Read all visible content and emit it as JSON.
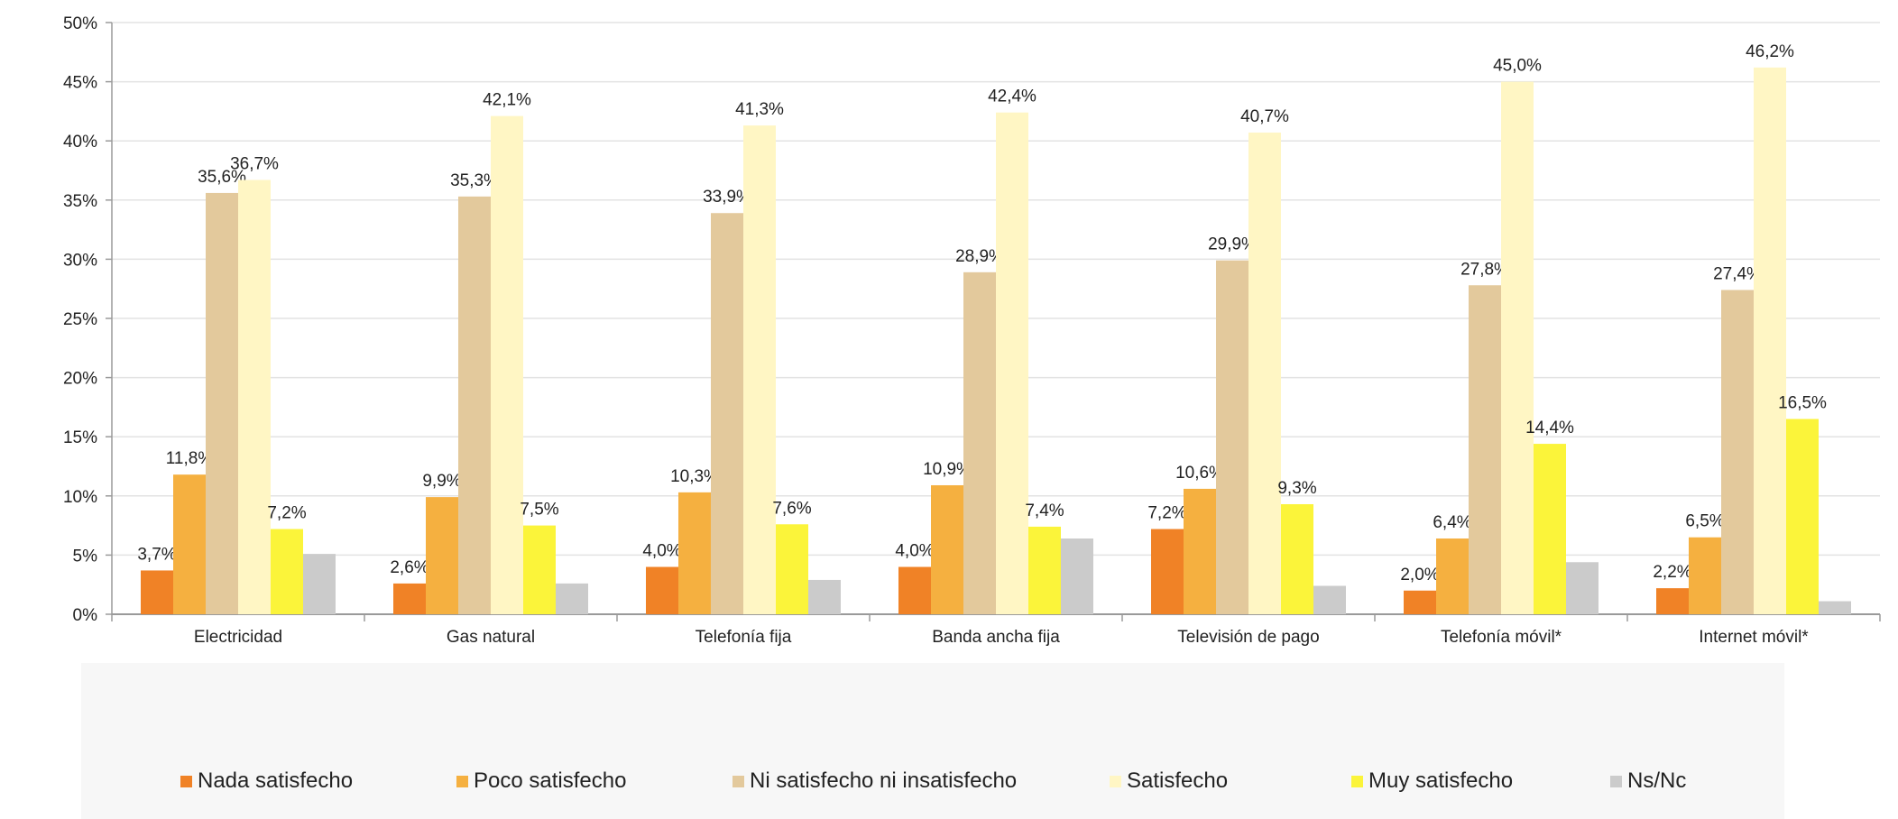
{
  "chart_data": {
    "type": "bar",
    "categories": [
      "Electricidad",
      "Gas natural",
      "Telefonía fija",
      "Banda ancha fija",
      "Televisión de pago",
      "Telefonía móvil*",
      "Internet móvil*"
    ],
    "series": [
      {
        "name": "Nada satisfecho",
        "color": "#f08226",
        "values": [
          3.7,
          2.6,
          4.0,
          4.0,
          7.2,
          2.0,
          2.2
        ],
        "labels": [
          "3,7%",
          "2,6%",
          "4,0%",
          "4,0%",
          "7,2%",
          "2,0%",
          "2,2%"
        ]
      },
      {
        "name": "Poco satisfecho",
        "color": "#f5b040",
        "values": [
          11.8,
          9.9,
          10.3,
          10.9,
          10.6,
          6.4,
          6.5
        ],
        "labels": [
          "11,8%",
          "9,9%",
          "10,3%",
          "10,9%",
          "10,6%",
          "6,4%",
          "6,5%"
        ]
      },
      {
        "name": "Ni satisfecho ni insatisfecho",
        "color": "#e3c99c",
        "values": [
          35.6,
          35.3,
          33.9,
          28.9,
          29.9,
          27.8,
          27.4
        ],
        "labels": [
          "35,6%",
          "35,3%",
          "33,9%",
          "28,9%",
          "29,9%",
          "27,8%",
          "27,4%"
        ]
      },
      {
        "name": "Satisfecho",
        "color": "#fff6c4",
        "values": [
          36.7,
          42.1,
          41.3,
          42.4,
          40.7,
          45.0,
          46.2
        ],
        "labels": [
          "36,7%",
          "42,1%",
          "41,3%",
          "42,4%",
          "40,7%",
          "45,0%",
          "46,2%"
        ]
      },
      {
        "name": "Muy satisfecho",
        "color": "#fbf43a",
        "values": [
          7.2,
          7.5,
          7.6,
          7.4,
          9.3,
          14.4,
          16.5
        ],
        "labels": [
          "7,2%",
          "7,5%",
          "7,6%",
          "7,4%",
          "9,3%",
          "14,4%",
          "16,5%"
        ]
      },
      {
        "name": "Ns/Nc",
        "color": "#cbcbcb",
        "values": [
          5.1,
          2.6,
          2.9,
          6.4,
          2.4,
          4.4,
          1.1
        ],
        "labels": [
          "",
          "",
          "",
          "",
          "",
          "",
          ""
        ]
      }
    ],
    "yticks": [
      "0%",
      "5%",
      "10%",
      "15%",
      "20%",
      "25%",
      "30%",
      "35%",
      "40%",
      "45%",
      "50%"
    ],
    "ylim": [
      0,
      50
    ],
    "ytick_step": 5,
    "grid": true,
    "legend_placement": "bottom",
    "title": "",
    "xlabel": "",
    "ylabel": ""
  }
}
